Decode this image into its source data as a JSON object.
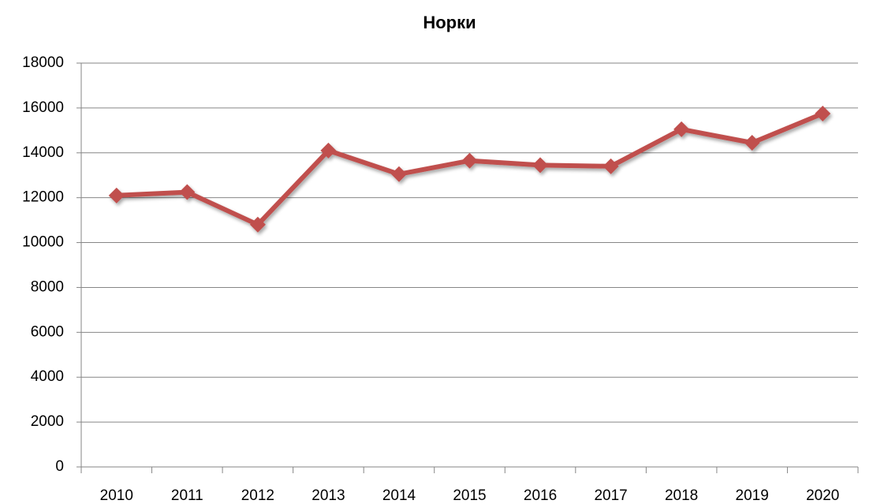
{
  "chart_data": {
    "type": "line",
    "title": "Норки",
    "categories": [
      "2010",
      "2011",
      "2012",
      "2013",
      "2014",
      "2015",
      "2016",
      "2017",
      "2018",
      "2019",
      "2020"
    ],
    "series": [
      {
        "color": "#c0504d",
        "values": [
          12100,
          12250,
          10800,
          14100,
          13050,
          13650,
          13450,
          13400,
          15050,
          14450,
          15750
        ]
      }
    ],
    "ylim": [
      0,
      18000
    ],
    "yticks": [
      0,
      2000,
      4000,
      6000,
      8000,
      10000,
      12000,
      14000,
      16000,
      18000
    ],
    "grid": true
  }
}
